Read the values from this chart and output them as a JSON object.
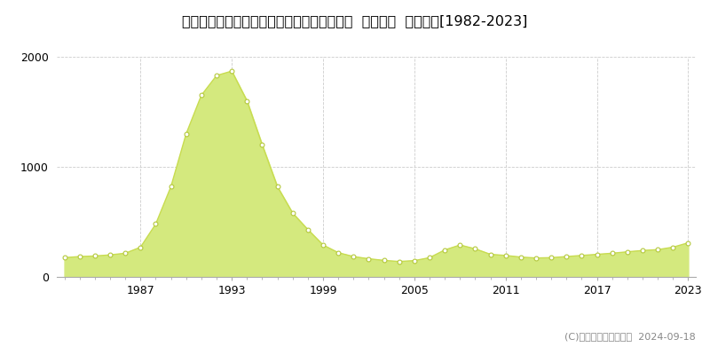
{
  "title": "北海道札幌市中央区北１条西７丁目３番３外  公示地価  地価推移[1982-2023]",
  "years": [
    1982,
    1983,
    1984,
    1985,
    1986,
    1987,
    1988,
    1989,
    1990,
    1991,
    1992,
    1993,
    1994,
    1995,
    1996,
    1997,
    1998,
    1999,
    2000,
    2001,
    2002,
    2003,
    2004,
    2005,
    2006,
    2007,
    2008,
    2009,
    2010,
    2011,
    2012,
    2013,
    2014,
    2015,
    2016,
    2017,
    2018,
    2019,
    2020,
    2021,
    2022,
    2023
  ],
  "values": [
    175,
    185,
    190,
    200,
    215,
    270,
    480,
    820,
    1300,
    1650,
    1830,
    1870,
    1600,
    1200,
    820,
    580,
    430,
    290,
    220,
    185,
    165,
    150,
    140,
    148,
    175,
    245,
    290,
    255,
    205,
    195,
    180,
    172,
    175,
    185,
    195,
    205,
    215,
    228,
    240,
    248,
    270,
    310
  ],
  "fill_color": "#d4e97e",
  "line_color": "#c8dc50",
  "marker_facecolor": "#ffffff",
  "marker_edgecolor": "#b4c83c",
  "ylim": [
    0,
    2000
  ],
  "yticks": [
    0,
    1000,
    2000
  ],
  "xticks": [
    1987,
    1993,
    1999,
    2005,
    2011,
    2017,
    2023
  ],
  "copyright_text": "(C)土地価格ドットコム  2024-09-18",
  "bg_color": "#ffffff",
  "plot_bg_color": "#ffffff",
  "grid_color": "#cccccc",
  "spine_color": "#aaaaaa",
  "title_fontsize": 11.5,
  "tick_fontsize": 9,
  "legend_fontsize": 9.5,
  "copyright_fontsize": 8
}
